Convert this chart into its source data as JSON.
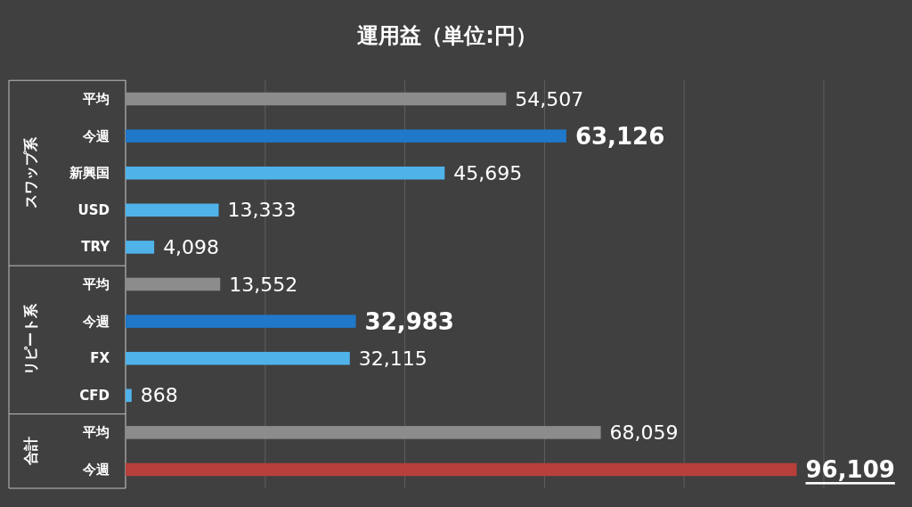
{
  "chart_data": {
    "type": "bar",
    "orientation": "horizontal",
    "title": "運用益（単位:円）",
    "categories": [
      "平均",
      "今週",
      "新興国",
      "USD",
      "TRY",
      "平均",
      "今週",
      "FX",
      "CFD",
      "平均",
      "今週"
    ],
    "values": [
      54507,
      63126,
      45695,
      13333,
      4098,
      13552,
      32983,
      32115,
      868,
      68059,
      96109
    ],
    "colors": [
      "#8c8c8c",
      "#1f78c8",
      "#4fb3ea",
      "#4fb3ea",
      "#4fb3ea",
      "#8c8c8c",
      "#1f78c8",
      "#4fb3ea",
      "#4fb3ea",
      "#8c8c8c",
      "#b8403c"
    ],
    "annotations": [
      "スワップ系",
      "リピート系",
      "合計"
    ],
    "xlim": [
      0,
      100000
    ],
    "xticks": [
      {
        "value": 0,
        "label": null
      },
      {
        "value": 20000,
        "label": null
      },
      {
        "value": 40000,
        "label": null
      },
      {
        "value": 60000,
        "label": null
      },
      {
        "value": 80000,
        "label": null
      },
      {
        "value": 100000,
        "label": null
      }
    ],
    "value_labels": [
      "54,507",
      "63,126",
      "45,695",
      "13,333",
      "4,098",
      "13,552",
      "32,983",
      "32,115",
      "868",
      "68,059",
      "96,109"
    ],
    "grid": "x",
    "tick_labels": "y"
  }
}
